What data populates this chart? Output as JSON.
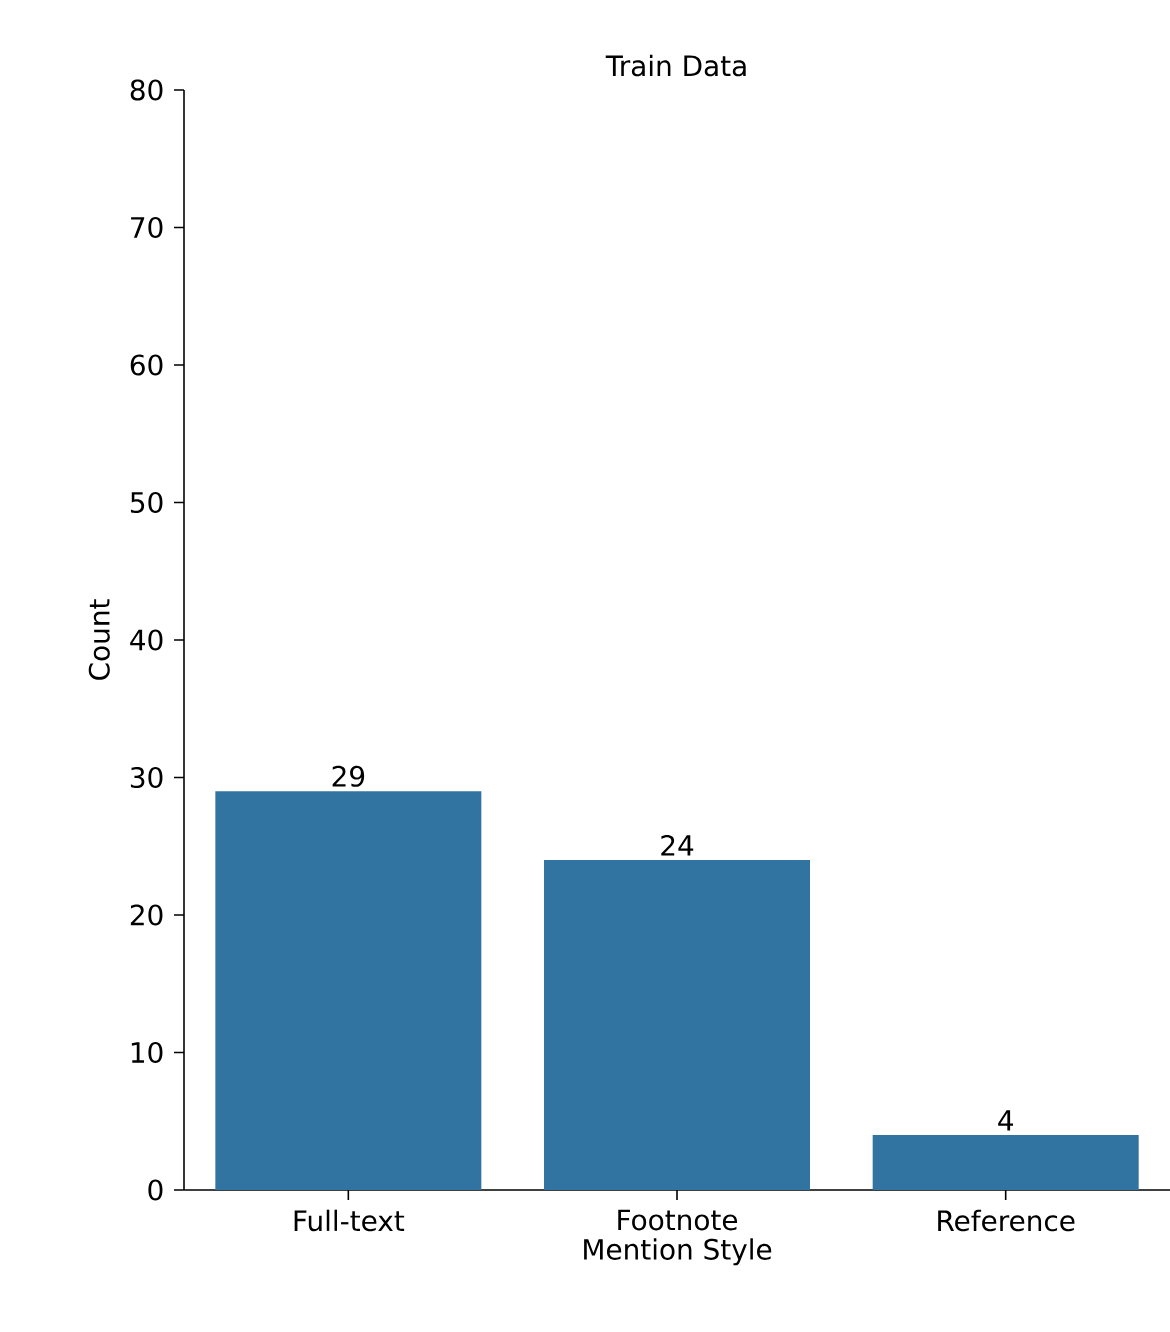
{
  "chart_data": {
    "type": "bar",
    "title": "Train Data",
    "xlabel": "Mention Style",
    "ylabel": "Count",
    "categories": [
      "Full-text",
      "Footnote",
      "Reference"
    ],
    "values": [
      29,
      24,
      4
    ],
    "color": "#3274a1",
    "ylim": [
      0,
      80
    ],
    "yticks": [
      0,
      10,
      20,
      30,
      40,
      50,
      60,
      70,
      80
    ],
    "data_labels": true,
    "grid": false
  }
}
